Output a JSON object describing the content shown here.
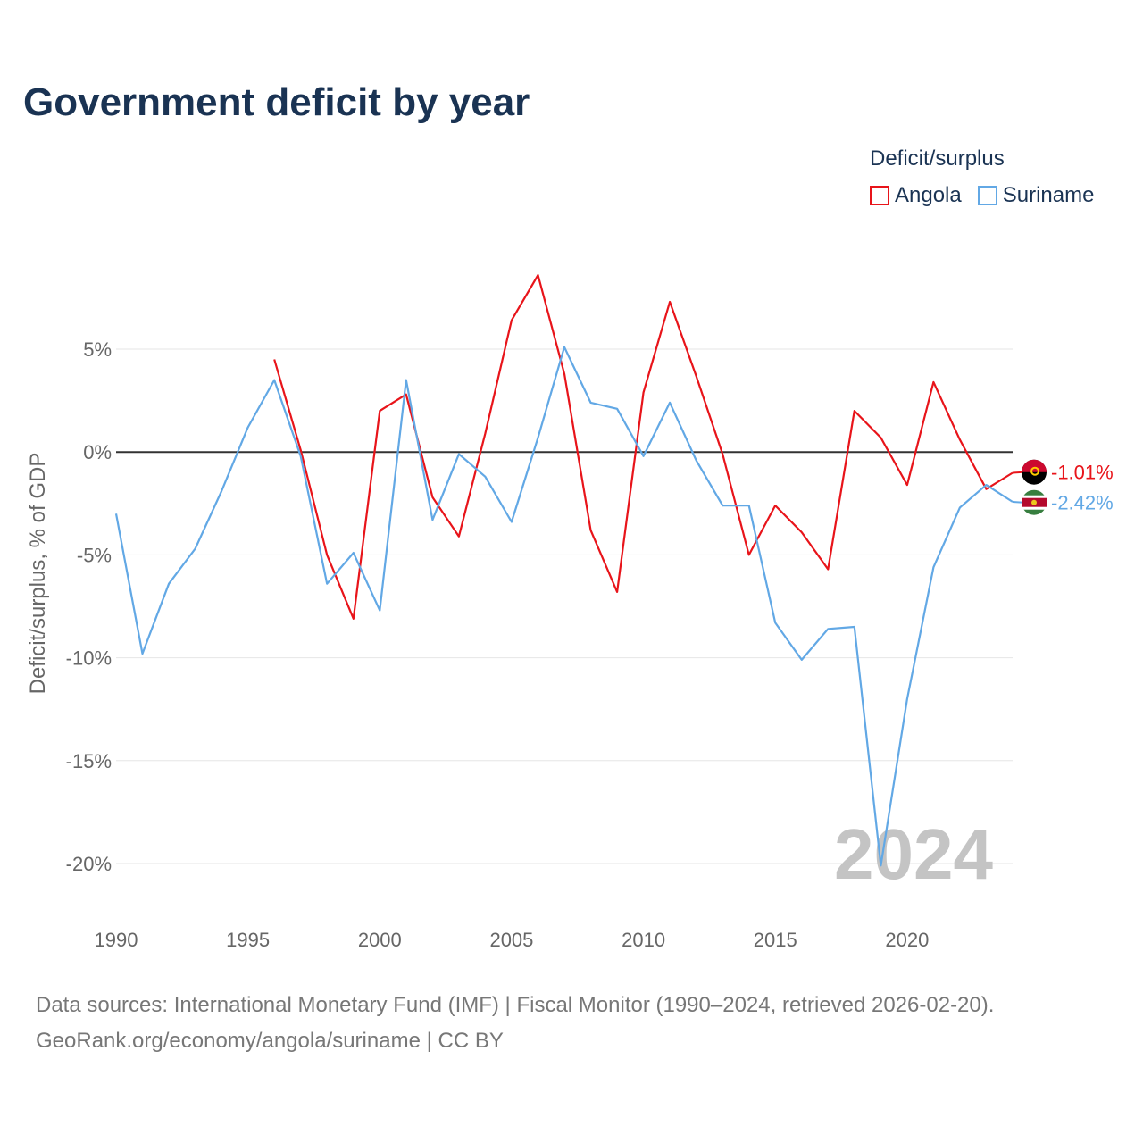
{
  "title": "Government deficit by year",
  "legend": {
    "title": "Deficit/surplus",
    "items": [
      {
        "label": "Angola",
        "color": "#e8141a"
      },
      {
        "label": "Suriname",
        "color": "#62a8e5"
      }
    ]
  },
  "year_watermark": "2024",
  "source": {
    "line1": "Data sources: International Monetary Fund (IMF) | Fiscal Monitor (1990–2024, retrieved 2026-02-20).",
    "line2": "GeoRank.org/economy/angola/suriname | CC BY"
  },
  "chart_data": {
    "type": "line",
    "title": "Government deficit by year",
    "xlabel": "",
    "ylabel": "Deficit/surplus, % of GDP",
    "xlim": [
      1990,
      2024
    ],
    "ylim": [
      -20,
      5
    ],
    "x_ticks": [
      1990,
      1995,
      2000,
      2005,
      2010,
      2015,
      2020
    ],
    "y_ticks": [
      {
        "value": 5,
        "label": "5%"
      },
      {
        "value": 0,
        "label": "0%"
      },
      {
        "value": -5,
        "label": "-5%"
      },
      {
        "value": -10,
        "label": "-10%"
      },
      {
        "value": -15,
        "label": "-15%"
      },
      {
        "value": -20,
        "label": "-20%"
      }
    ],
    "grid": true,
    "legend_position": "top-right",
    "series": [
      {
        "name": "Angola",
        "color": "#e8141a",
        "x": [
          1996,
          1997,
          1998,
          1999,
          2000,
          2001,
          2002,
          2003,
          2004,
          2005,
          2006,
          2007,
          2008,
          2009,
          2010,
          2011,
          2012,
          2013,
          2014,
          2015,
          2016,
          2017,
          2018,
          2019,
          2020,
          2021,
          2022,
          2023,
          2024
        ],
        "y": [
          4.5,
          0.1,
          -5.0,
          -8.1,
          2.0,
          2.8,
          -2.2,
          -4.1,
          0.9,
          6.4,
          8.6,
          3.8,
          -3.8,
          -6.8,
          2.9,
          7.3,
          3.7,
          -0.1,
          -5.0,
          -2.6,
          -3.9,
          -5.7,
          2.0,
          0.7,
          -1.6,
          3.4,
          0.6,
          -1.8,
          -1.01
        ],
        "end_label": "-1.01%"
      },
      {
        "name": "Suriname",
        "color": "#62a8e5",
        "x": [
          1990,
          1991,
          1992,
          1993,
          1994,
          1995,
          1996,
          1997,
          1998,
          1999,
          2000,
          2001,
          2002,
          2003,
          2004,
          2005,
          2006,
          2007,
          2008,
          2009,
          2010,
          2011,
          2012,
          2013,
          2014,
          2015,
          2016,
          2017,
          2018,
          2019,
          2020,
          2021,
          2022,
          2023,
          2024
        ],
        "y": [
          -3.0,
          -9.8,
          -6.4,
          -4.7,
          -1.9,
          1.2,
          3.5,
          -0.2,
          -6.4,
          -4.9,
          -7.7,
          3.5,
          -3.3,
          -0.1,
          -1.2,
          -3.4,
          0.7,
          5.1,
          2.4,
          2.1,
          -0.2,
          2.4,
          -0.4,
          -2.6,
          -2.6,
          -8.3,
          -10.1,
          -8.6,
          -8.5,
          -20.1,
          -12.0,
          -5.6,
          -2.7,
          -1.6,
          -2.42
        ],
        "end_label": "-2.42%"
      }
    ]
  }
}
